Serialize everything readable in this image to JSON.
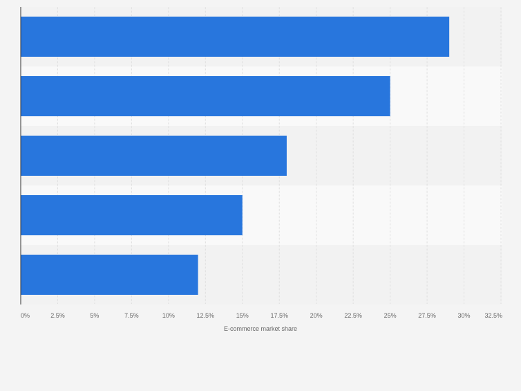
{
  "chart_data": {
    "type": "bar",
    "orientation": "horizontal",
    "categories": [
      "",
      "",
      "",
      "",
      ""
    ],
    "values": [
      29,
      25,
      18,
      15,
      12
    ],
    "title": "",
    "xlabel": "E-commerce market share",
    "ylabel": "",
    "xlim": [
      0,
      32.5
    ],
    "x_ticks": [
      "0%",
      "2.5%",
      "5%",
      "7.5%",
      "10%",
      "12.5%",
      "15%",
      "17.5%",
      "20%",
      "22.5%",
      "25%",
      "27.5%",
      "30%",
      "32.5%"
    ],
    "x_tick_values": [
      0,
      2.5,
      5,
      7.5,
      10,
      12.5,
      15,
      17.5,
      20,
      22.5,
      25,
      27.5,
      30,
      32.5
    ],
    "grid": true,
    "colors": {
      "bar": "#2876dd",
      "band_dark": "#f2f2f2",
      "band_light": "#f9f9f9",
      "grid": "#dddddd",
      "axis": "#333333",
      "tick_text": "#666666"
    }
  }
}
